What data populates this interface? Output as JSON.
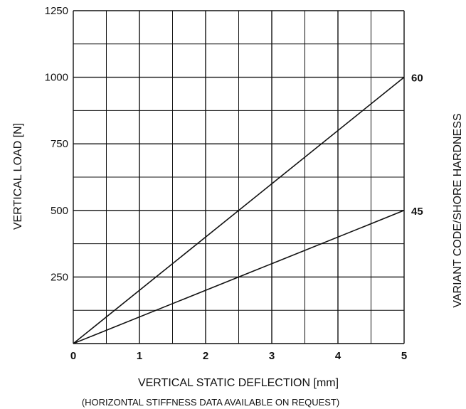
{
  "chart_data": {
    "type": "line",
    "xlabel": "VERTICAL STATIC DEFLECTION [mm]",
    "ylabel": "VERTICAL LOAD [N]",
    "y2label": "VARIANT CODE/SHORE HARDNESS",
    "note": "(HORIZONTAL STIFFNESS DATA AVAILABLE ON REQUEST)",
    "xlim": [
      0,
      5
    ],
    "ylim": [
      0,
      1250
    ],
    "xticks": [
      0,
      1,
      2,
      3,
      4,
      5
    ],
    "xtick_labels": [
      "0",
      "1",
      "2",
      "3",
      "4",
      "5"
    ],
    "yticks": [
      250,
      500,
      750,
      1000,
      1250
    ],
    "ytick_labels": [
      "250",
      "500",
      "750",
      "1000",
      "1250"
    ],
    "x_minor_step": 0.5,
    "y_minor_step": 125,
    "grid": true,
    "series": [
      {
        "name": "60",
        "x": [
          0,
          5
        ],
        "y": [
          0,
          1000
        ]
      },
      {
        "name": "45",
        "x": [
          0,
          5
        ],
        "y": [
          0,
          500
        ]
      }
    ]
  }
}
